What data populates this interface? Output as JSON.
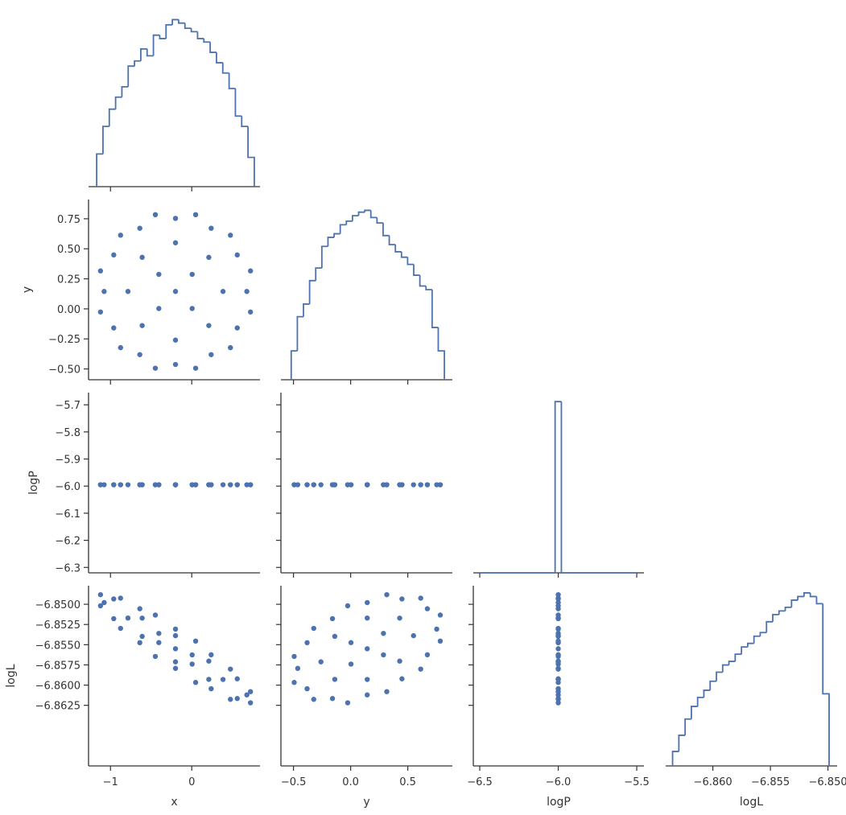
{
  "chart_data": [
    {
      "type": "histogram",
      "color": "#4c72b0",
      "bins": [
        -1.17,
        -1.0924,
        -1.0148,
        -0.9372,
        -0.8596,
        -0.782,
        -0.7044,
        -0.6268,
        -0.5492,
        -0.4716,
        -0.394,
        -0.3164,
        -0.2388,
        -0.1612,
        -0.0836,
        -0.006,
        0.0716,
        0.1492,
        0.2268,
        0.3044,
        0.382,
        0.4596,
        0.5372,
        0.6148,
        0.6924,
        0.77
      ],
      "values": [
        19,
        35,
        45,
        52,
        58,
        70,
        73,
        80,
        76,
        88,
        86,
        94,
        97,
        95,
        92,
        90,
        86,
        84,
        78,
        72,
        66,
        57,
        41,
        35,
        17
      ],
      "xlim": [
        -1.27,
        0.84
      ],
      "xticks": [
        -1,
        0
      ],
      "ylim": [
        0,
        100
      ]
    },
    {
      "type": "scatter",
      "color": "#4c72b0",
      "ylabel": "y",
      "x": [
        -0.2,
        0.005,
        -0.405,
        -0.405,
        0.005,
        0.385,
        0.21,
        -0.2,
        -0.61,
        -0.785,
        -0.61,
        -0.2,
        0.21,
        0.678,
        0.56,
        0.239,
        -0.2,
        -0.639,
        -0.96,
        -1.078,
        -0.96,
        -0.639,
        -0.2,
        0.239,
        0.56,
        0.723,
        0.476,
        0.048,
        -0.448,
        -0.876,
        -1.123,
        -1.123,
        -0.876,
        -0.448,
        0.048,
        0.476,
        0.723
      ],
      "y": [
        0.145,
        0.287,
        0.287,
        0.003,
        0.003,
        0.145,
        0.429,
        0.55,
        0.429,
        0.145,
        -0.139,
        -0.26,
        -0.139,
        0.145,
        0.449,
        0.671,
        0.753,
        0.671,
        0.449,
        0.145,
        -0.159,
        -0.381,
        -0.463,
        -0.381,
        -0.159,
        0.316,
        0.613,
        0.784,
        0.784,
        0.613,
        0.316,
        -0.026,
        -0.323,
        -0.494,
        -0.494,
        -0.323,
        -0.026
      ],
      "xlim": [
        -1.27,
        0.84
      ],
      "xticks": [
        -1,
        0
      ],
      "ylim": [
        -0.59,
        0.91
      ],
      "yticks": [
        {
          "value": 0.75,
          "label": "0.75"
        },
        {
          "value": 0.5,
          "label": "0.50"
        },
        {
          "value": 0.25,
          "label": "0.25"
        },
        {
          "value": 0,
          "label": "0.00"
        },
        {
          "value": -0.25,
          "label": "−0.25"
        },
        {
          "value": -0.5,
          "label": "−0.50"
        }
      ]
    },
    {
      "type": "histogram",
      "color": "#4c72b0",
      "bins": [
        -0.52,
        -0.4664,
        -0.4128,
        -0.3592,
        -0.3056,
        -0.252,
        -0.1984,
        -0.1448,
        -0.0912,
        -0.0376,
        0.016,
        0.0696,
        0.1232,
        0.1768,
        0.2304,
        0.284,
        0.3376,
        0.3912,
        0.4448,
        0.4984,
        0.552,
        0.6056,
        0.6592,
        0.7128,
        0.7664,
        0.82
      ],
      "values": [
        16,
        35,
        42,
        55,
        62,
        74,
        79,
        81,
        86,
        88,
        91,
        93,
        94,
        90,
        87,
        80,
        75,
        71,
        68,
        64,
        58,
        52,
        50,
        29,
        16
      ],
      "xlim": [
        -0.61,
        0.89
      ],
      "xticks": [
        -0.5,
        0,
        0.5
      ],
      "ylim": [
        0,
        100
      ]
    },
    {
      "type": "scatter",
      "color": "#4c72b0",
      "ylabel": "logP",
      "x": [
        -0.2,
        0.005,
        -0.405,
        -0.405,
        0.005,
        0.385,
        0.21,
        -0.2,
        -0.61,
        -0.785,
        -0.61,
        -0.2,
        0.21,
        0.678,
        0.56,
        0.239,
        -0.2,
        -0.639,
        -0.96,
        -1.078,
        -0.96,
        -0.639,
        -0.2,
        0.239,
        0.56,
        0.723,
        0.476,
        0.048,
        -0.448,
        -0.876,
        -1.123,
        -1.123,
        -0.876,
        -0.448,
        0.048,
        0.476,
        0.723
      ],
      "y": [
        -5.995,
        -5.995,
        -5.995,
        -5.995,
        -5.995,
        -5.995,
        -5.995,
        -5.995,
        -5.995,
        -5.995,
        -5.995,
        -5.995,
        -5.995,
        -5.995,
        -5.995,
        -5.995,
        -5.995,
        -5.995,
        -5.995,
        -5.995,
        -5.995,
        -5.995,
        -5.995,
        -5.995,
        -5.995,
        -5.995,
        -5.995,
        -5.995,
        -5.995,
        -5.995,
        -5.995,
        -5.995,
        -5.995,
        -5.995,
        -5.995,
        -5.995,
        -5.995
      ],
      "xlim": [
        -1.27,
        0.84
      ],
      "xticks": [
        -1,
        0
      ],
      "ylim": [
        -6.32,
        -5.655
      ],
      "yticks": [
        {
          "value": -5.7,
          "label": "−5.7"
        },
        {
          "value": -5.8,
          "label": "−5.8"
        },
        {
          "value": -5.9,
          "label": "−5.9"
        },
        {
          "value": -6.0,
          "label": "−6.0"
        },
        {
          "value": -6.1,
          "label": "−6.1"
        },
        {
          "value": -6.2,
          "label": "−6.2"
        },
        {
          "value": -6.3,
          "label": "−6.3"
        }
      ]
    },
    {
      "type": "scatter",
      "color": "#4c72b0",
      "x": [
        0.145,
        0.287,
        0.287,
        0.003,
        0.003,
        0.145,
        0.429,
        0.55,
        0.429,
        0.145,
        -0.139,
        -0.26,
        -0.139,
        0.145,
        0.449,
        0.671,
        0.753,
        0.671,
        0.449,
        0.145,
        -0.159,
        -0.381,
        -0.463,
        -0.381,
        -0.159,
        0.316,
        0.613,
        0.784,
        0.784,
        0.613,
        0.316,
        -0.026,
        -0.323,
        -0.494,
        -0.494,
        -0.323,
        -0.026
      ],
      "y": [
        -5.995,
        -5.995,
        -5.995,
        -5.995,
        -5.995,
        -5.995,
        -5.995,
        -5.995,
        -5.995,
        -5.995,
        -5.995,
        -5.995,
        -5.995,
        -5.995,
        -5.995,
        -5.995,
        -5.995,
        -5.995,
        -5.995,
        -5.995,
        -5.995,
        -5.995,
        -5.995,
        -5.995,
        -5.995,
        -5.995,
        -5.995,
        -5.995,
        -5.995,
        -5.995,
        -5.995,
        -5.995,
        -5.995,
        -5.995,
        -5.995,
        -5.995,
        -5.995
      ],
      "xlim": [
        -0.61,
        0.89
      ],
      "xticks": [
        -0.5,
        0,
        0.5
      ],
      "ylim": [
        -6.32,
        -5.655
      ],
      "yticks": [
        -5.7,
        -5.8,
        -5.9,
        -6.0,
        -6.1,
        -6.2,
        -6.3
      ]
    },
    {
      "type": "histogram",
      "color": "#4c72b0",
      "bins": [
        -6.5,
        -6.02,
        -5.98,
        -5.5
      ],
      "values": [
        0,
        95,
        0
      ],
      "xlim": [
        -6.541,
        -5.454
      ],
      "xticks": [
        -6.5,
        -6.0,
        -5.5
      ],
      "ylim": [
        0,
        100
      ]
    },
    {
      "type": "scatter",
      "color": "#4c72b0",
      "xlabel": "x",
      "ylabel": "logL",
      "x": [
        -0.2,
        0.005,
        -0.405,
        -0.405,
        0.005,
        0.385,
        0.21,
        -0.2,
        -0.61,
        -0.785,
        -0.61,
        -0.2,
        0.21,
        0.678,
        0.56,
        0.239,
        -0.2,
        -0.639,
        -0.96,
        -1.078,
        -0.96,
        -0.639,
        -0.2,
        0.239,
        0.56,
        0.723,
        0.476,
        0.048,
        -0.448,
        -0.876,
        -1.123,
        -1.123,
        -0.876,
        -0.448,
        0.048,
        0.476,
        0.723
      ],
      "y": [
        -6.8555,
        -6.85626,
        -6.8536,
        -6.85474,
        -6.8574,
        -6.8593,
        -6.85703,
        -6.85388,
        -6.85171,
        -6.8517,
        -6.85397,
        -6.85712,
        -6.85929,
        -6.86121,
        -6.85922,
        -6.85625,
        -6.85307,
        -6.85055,
        -6.84934,
        -6.84979,
        -6.85178,
        -6.85475,
        -6.85793,
        -6.86045,
        -6.86166,
        -6.86081,
        -6.85802,
        -6.85455,
        -6.85133,
        -6.84924,
        -6.84881,
        -6.85019,
        -6.85298,
        -6.85645,
        -6.85967,
        -6.86176,
        -6.86219
      ],
      "xlim": [
        -1.27,
        0.84
      ],
      "xticks": [
        {
          "value": -1,
          "label": "−1"
        },
        0
      ],
      "ylim": [
        -6.87,
        -6.8477
      ],
      "yticks": [
        {
          "value": -6.85,
          "label": "−6.8500"
        },
        {
          "value": -6.8525,
          "label": "−6.8525"
        },
        {
          "value": -6.855,
          "label": "−6.8550"
        },
        {
          "value": -6.8575,
          "label": "−6.8575"
        },
        {
          "value": -6.86,
          "label": "−6.8600"
        },
        {
          "value": -6.8625,
          "label": "−6.8625"
        }
      ]
    },
    {
      "type": "scatter",
      "color": "#4c72b0",
      "xlabel": "y",
      "x": [
        0.145,
        0.287,
        0.287,
        0.003,
        0.003,
        0.145,
        0.429,
        0.55,
        0.429,
        0.145,
        -0.139,
        -0.26,
        -0.139,
        0.145,
        0.449,
        0.671,
        0.753,
        0.671,
        0.449,
        0.145,
        -0.159,
        -0.381,
        -0.463,
        -0.381,
        -0.159,
        0.316,
        0.613,
        0.784,
        0.784,
        0.613,
        0.316,
        -0.026,
        -0.323,
        -0.494,
        -0.494,
        -0.323,
        -0.026
      ],
      "y": [
        -6.8555,
        -6.85626,
        -6.8536,
        -6.85474,
        -6.8574,
        -6.8593,
        -6.85703,
        -6.85388,
        -6.85171,
        -6.8517,
        -6.85397,
        -6.85712,
        -6.85929,
        -6.86121,
        -6.85922,
        -6.85625,
        -6.85307,
        -6.85055,
        -6.84934,
        -6.84979,
        -6.85178,
        -6.85475,
        -6.85793,
        -6.86045,
        -6.86166,
        -6.86081,
        -6.85802,
        -6.85455,
        -6.85133,
        -6.84924,
        -6.84881,
        -6.85019,
        -6.85298,
        -6.85645,
        -6.85967,
        -6.86176,
        -6.86219
      ],
      "xlim": [
        -0.61,
        0.89
      ],
      "xticks": [
        {
          "value": -0.5,
          "label": "−0.5"
        },
        {
          "value": 0,
          "label": "0.0"
        },
        {
          "value": 0.5,
          "label": "0.5"
        }
      ],
      "ylim": [
        -6.87,
        -6.8477
      ],
      "yticks": [
        -6.85,
        -6.8525,
        -6.855,
        -6.8575,
        -6.86,
        -6.8625
      ]
    },
    {
      "type": "scatter",
      "color": "#4c72b0",
      "xlabel": "logP",
      "x": [
        -6.0,
        -6.0,
        -6.0,
        -6.0,
        -6.0,
        -6.0,
        -6.0,
        -6.0,
        -6.0,
        -6.0,
        -6.0,
        -6.0,
        -6.0,
        -6.0,
        -6.0,
        -6.0,
        -6.0,
        -6.0,
        -6.0,
        -6.0,
        -6.0,
        -6.0,
        -6.0,
        -6.0,
        -6.0,
        -6.0,
        -6.0,
        -6.0,
        -6.0,
        -6.0,
        -6.0,
        -6.0,
        -6.0,
        -6.0,
        -6.0,
        -6.0,
        -6.0
      ],
      "y": [
        -6.8555,
        -6.85626,
        -6.8536,
        -6.85474,
        -6.8574,
        -6.8593,
        -6.85703,
        -6.85388,
        -6.85171,
        -6.8517,
        -6.85397,
        -6.85712,
        -6.85929,
        -6.86121,
        -6.85922,
        -6.85625,
        -6.85307,
        -6.85055,
        -6.84934,
        -6.84979,
        -6.85178,
        -6.85475,
        -6.85793,
        -6.86045,
        -6.86166,
        -6.86081,
        -6.85802,
        -6.85455,
        -6.85133,
        -6.84924,
        -6.84881,
        -6.85019,
        -6.85298,
        -6.85645,
        -6.85967,
        -6.86176,
        -6.86219
      ],
      "xlim": [
        -6.541,
        -5.454
      ],
      "xticks": [
        {
          "value": -6.5,
          "label": "−6.5"
        },
        {
          "value": -6.0,
          "label": "−6.0"
        },
        {
          "value": -5.5,
          "label": "−5.5"
        }
      ],
      "ylim": [
        -6.87,
        -6.8477
      ],
      "yticks": [
        -6.85,
        -6.8525,
        -6.855,
        -6.8575,
        -6.86,
        -6.8625
      ]
    },
    {
      "type": "histogram",
      "color": "#4c72b0",
      "xlabel": "logL",
      "bins": [
        -6.8635,
        -6.862956,
        -6.862412,
        -6.861868,
        -6.861324,
        -6.86078,
        -6.860236,
        -6.859692,
        -6.859148,
        -6.858604,
        -6.85806,
        -6.857516,
        -6.856972,
        -6.856428,
        -6.855884,
        -6.85534,
        -6.854796,
        -6.854252,
        -6.853708,
        -6.853164,
        -6.85262,
        -6.852076,
        -6.851532,
        -6.850988,
        -6.850444,
        -6.8499
      ],
      "values": [
        8,
        17,
        26,
        33,
        38,
        42,
        47,
        52,
        56,
        58,
        62,
        66,
        68,
        72,
        74,
        80,
        84,
        86,
        88,
        92,
        94,
        96,
        94,
        90,
        40
      ],
      "xlim": [
        -6.8641,
        -6.8492
      ],
      "xticks": [
        {
          "value": -6.86,
          "label": "−6.860"
        },
        {
          "value": -6.855,
          "label": "−6.855"
        },
        {
          "value": -6.85,
          "label": "−6.850"
        }
      ],
      "ylim": [
        0,
        100
      ]
    }
  ]
}
